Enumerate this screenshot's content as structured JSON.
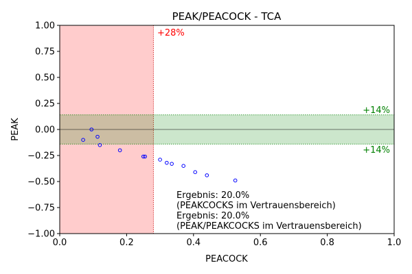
{
  "chart_data": {
    "type": "scatter",
    "title": "PEAK/PEACOCK - TCA",
    "xlabel": "PEACOCK",
    "ylabel": "PEAK",
    "xlim": [
      0.0,
      1.0
    ],
    "ylim": [
      -1.0,
      1.0
    ],
    "xticks": [
      0.0,
      0.2,
      0.4,
      0.6,
      0.8,
      1.0
    ],
    "xtick_labels": [
      "0.0",
      "0.2",
      "0.4",
      "0.6",
      "0.8",
      "1.0"
    ],
    "yticks": [
      1.0,
      0.75,
      0.5,
      0.25,
      0.0,
      -0.25,
      -0.5,
      -0.75,
      -1.0
    ],
    "ytick_labels": [
      "1.00",
      "0.75",
      "0.50",
      "0.25",
      "0.00",
      "−0.25",
      "−0.50",
      "−0.75",
      "−1.00"
    ],
    "grid": false,
    "series": [
      {
        "x": [
          0.07,
          0.095,
          0.113,
          0.12,
          0.18,
          0.25,
          0.255,
          0.3,
          0.32,
          0.335,
          0.37,
          0.405,
          0.44,
          0.525
        ],
        "y": [
          -0.1,
          0.0,
          -0.07,
          -0.15,
          -0.2,
          -0.26,
          -0.26,
          -0.29,
          -0.32,
          -0.33,
          -0.35,
          -0.41,
          -0.44,
          -0.49
        ],
        "marker": "open-circle",
        "color": "#0000ff"
      }
    ],
    "regions": {
      "peacock_band": {
        "x_to": 0.28,
        "color": "#ff0000",
        "opacity": 0.2,
        "label": "+28%"
      },
      "peak_band": {
        "y_from": -0.14,
        "y_to": 0.14,
        "color": "#008000",
        "opacity": 0.2,
        "label_top": "+14%",
        "label_bottom": "+14%"
      }
    },
    "annotations": [
      "Ergebnis: 20.0%",
      "(PEAKCOCKS im Vertrauensbereich)",
      "Ergebnis: 20.0%",
      "(PEAK/PEAKCOCKS im Vertrauensbereich)"
    ],
    "colors": {
      "region_label_red": "#ff0000",
      "region_label_green": "#008000",
      "points": "#0000ff"
    }
  }
}
